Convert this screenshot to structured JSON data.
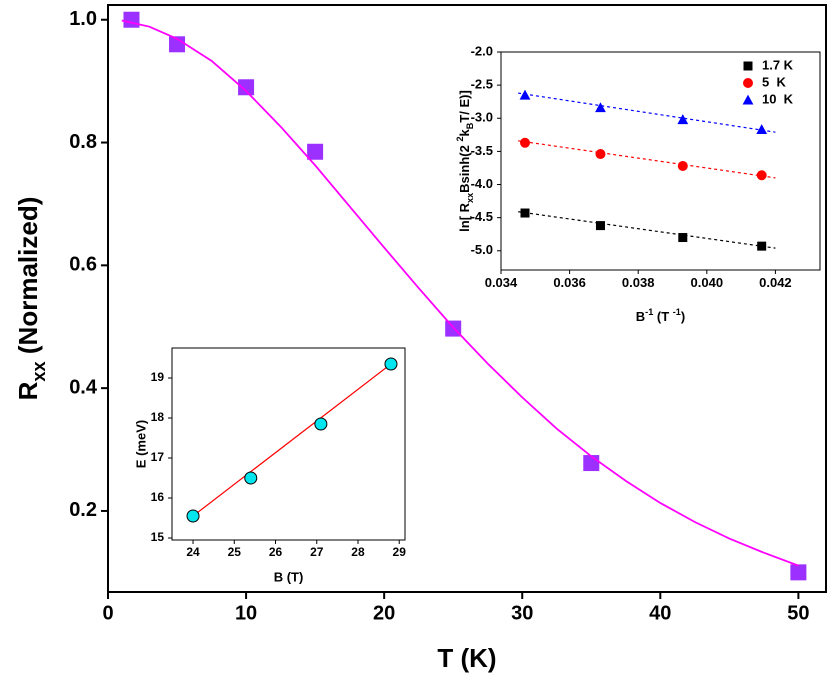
{
  "chart_data": [
    {
      "type": "scatter",
      "xlabel": "T (K)",
      "ylabel": [
        {
          "text": "R",
          "shift": "base"
        },
        {
          "text": "xx",
          "shift": "sub"
        },
        {
          "text": " (Normalized)",
          "shift": "base"
        }
      ],
      "xlim": [
        0,
        52
      ],
      "ylim": [
        0.068,
        1.024
      ],
      "xticks": [
        0,
        10,
        20,
        30,
        40,
        50
      ],
      "yticks": [
        0.2,
        0.4,
        0.6,
        0.8,
        {
          "value": 1,
          "label": "1.0"
        }
      ],
      "series": [
        {
          "color": "#9b30ff",
          "marker": "square",
          "x": [
            1.7,
            5,
            10,
            15,
            25,
            35,
            50
          ],
          "values": [
            1.0,
            0.96,
            0.89,
            0.785,
            0.497,
            0.278,
            0.1
          ]
        },
        {
          "color": "#ff00ff",
          "line": "solid",
          "x": [
            1,
            3,
            5,
            7.5,
            10,
            12.5,
            15,
            17.5,
            20,
            22.5,
            25,
            27.5,
            30,
            32.5,
            35,
            37.5,
            40,
            42.5,
            45,
            47.5,
            50
          ],
          "values": [
            0.9987,
            0.9887,
            0.969,
            0.933,
            0.884,
            0.826,
            0.763,
            0.696,
            0.629,
            0.563,
            0.499,
            0.44,
            0.385,
            0.334,
            0.289,
            0.249,
            0.213,
            0.182,
            0.155,
            0.132,
            0.111
          ]
        }
      ]
    },
    {
      "type": "scatter",
      "xlabel": [
        {
          "text": "B",
          "shift": "base"
        },
        {
          "text": "-1",
          "shift": "sup"
        },
        {
          "text": " (T ",
          "shift": "base"
        },
        {
          "text": "-1",
          "shift": "sup"
        },
        {
          "text": ")",
          "shift": "base"
        }
      ],
      "ylabel": [
        {
          "text": "ln[ R",
          "shift": "base"
        },
        {
          "text": "xx",
          "shift": "sub"
        },
        {
          "text": "Bsinh(2  ",
          "shift": "base"
        },
        {
          "text": "2",
          "shift": "sup"
        },
        {
          "text": "k",
          "shift": "base"
        },
        {
          "text": "B",
          "shift": "sub"
        },
        {
          "text": "T/ E)]",
          "shift": "base"
        }
      ],
      "xlim": [
        0.034,
        0.0433
      ],
      "ylim": [
        -5.29,
        -2.0
      ],
      "xticks": [
        {
          "value": 0.034,
          "label": "0.034"
        },
        {
          "value": 0.036,
          "label": "0.036"
        },
        {
          "value": 0.038,
          "label": "0.038"
        },
        {
          "value": 0.04,
          "label": "0.040"
        },
        {
          "value": 0.042,
          "label": "0.042"
        }
      ],
      "yticks": [
        {
          "value": -2,
          "label": "-2.0"
        },
        -2.5,
        {
          "value": -3,
          "label": "-3.0"
        },
        -3.5,
        {
          "value": -4,
          "label": "-4.0"
        },
        -4.5,
        {
          "value": -5,
          "label": "-5.0"
        }
      ],
      "legend": "upper right",
      "series": [
        {
          "name": "1.7 K",
          "color": "#000000",
          "marker": "square",
          "x": [
            0.0347,
            0.0369,
            0.0393,
            0.0416
          ],
          "values": [
            -4.43,
            -4.62,
            -4.8,
            -4.93
          ]
        },
        {
          "name": "5  K",
          "color": "#ff0000",
          "marker": "circle",
          "x": [
            0.0347,
            0.0369,
            0.0393,
            0.0416
          ],
          "values": [
            -3.37,
            -3.54,
            -3.72,
            -3.86
          ]
        },
        {
          "name": "10  K",
          "color": "#0000ff",
          "marker": "triangle",
          "x": [
            0.0347,
            0.0369,
            0.0393,
            0.0416
          ],
          "values": [
            -2.65,
            -2.84,
            -3.02,
            -3.17
          ]
        },
        {
          "color": "#000000",
          "line": "dashed",
          "x": [
            0.0345,
            0.042
          ],
          "values": [
            -4.41,
            -4.96
          ]
        },
        {
          "color": "#ff0000",
          "line": "dashed",
          "x": [
            0.0345,
            0.042
          ],
          "values": [
            -3.34,
            -3.9
          ]
        },
        {
          "color": "#0000ff",
          "line": "dashed",
          "x": [
            0.0345,
            0.042
          ],
          "values": [
            -2.62,
            -3.21
          ]
        }
      ]
    },
    {
      "type": "scatter",
      "xlabel": "B (T)",
      "ylabel": "E (meV)",
      "xlim": [
        23.49,
        29.14
      ],
      "ylim": [
        14.95,
        19.75
      ],
      "xticks": [
        24,
        25,
        26,
        27,
        28,
        29
      ],
      "yticks": [
        15,
        16,
        17,
        18,
        19
      ],
      "series": [
        {
          "color": "#ff0000",
          "line": "solid",
          "x": [
            24.0,
            28.8
          ],
          "values": [
            15.55,
            19.35
          ]
        },
        {
          "color": "#00e5ee",
          "marker": "circle",
          "x": [
            24.0,
            25.4,
            27.1,
            28.8
          ],
          "values": [
            15.55,
            16.5,
            17.85,
            19.35
          ]
        }
      ]
    }
  ]
}
